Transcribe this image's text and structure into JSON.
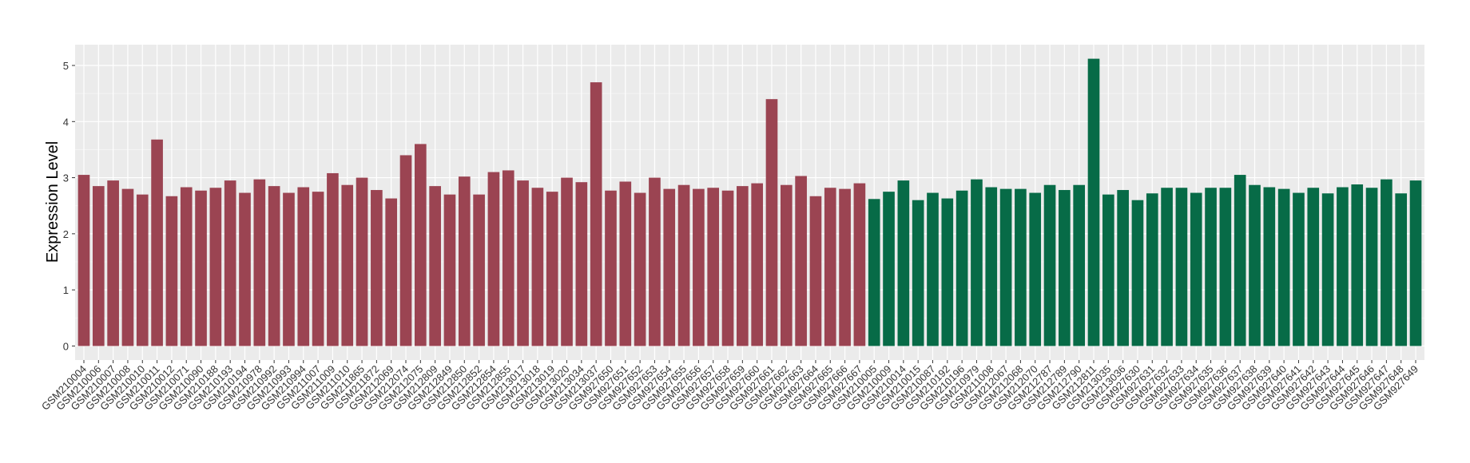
{
  "chart_data": {
    "type": "bar",
    "y_label": "Expression Level",
    "ylim": [
      -0.25,
      5.37
    ],
    "yticks": [
      0,
      1,
      2,
      3,
      4,
      5
    ],
    "grid": true,
    "series": [
      {
        "color": "#9b4452",
        "categories": [
          "GSM210004",
          "GSM210006",
          "GSM210007",
          "GSM210008",
          "GSM210010",
          "GSM210011",
          "GSM210012",
          "GSM210071",
          "GSM210090",
          "GSM210188",
          "GSM210193",
          "GSM210194",
          "GSM210978",
          "GSM210992",
          "GSM210993",
          "GSM210994",
          "GSM211007",
          "GSM211009",
          "GSM211010",
          "GSM211865",
          "GSM211872",
          "GSM212069",
          "GSM212074",
          "GSM212075",
          "GSM212809",
          "GSM212849",
          "GSM212850",
          "GSM212852",
          "GSM212854",
          "GSM212855",
          "GSM213017",
          "GSM213018",
          "GSM213019",
          "GSM213020",
          "GSM213034",
          "GSM213037",
          "GSM927650",
          "GSM927651",
          "GSM927652",
          "GSM927653",
          "GSM927654",
          "GSM927655",
          "GSM927656",
          "GSM927657",
          "GSM927658",
          "GSM927659",
          "GSM927660",
          "GSM927661",
          "GSM927662",
          "GSM927663",
          "GSM927664",
          "GSM927665",
          "GSM927666",
          "GSM927667"
        ],
        "values": [
          3.05,
          2.85,
          2.95,
          2.8,
          2.7,
          3.68,
          2.67,
          2.83,
          2.77,
          2.82,
          2.95,
          2.73,
          2.97,
          2.85,
          2.73,
          2.83,
          2.75,
          3.08,
          2.87,
          3.0,
          2.78,
          2.63,
          3.4,
          3.6,
          2.85,
          2.7,
          3.02,
          2.7,
          3.1,
          3.13,
          2.95,
          2.82,
          2.75,
          3.0,
          2.92,
          4.7,
          2.77,
          2.93,
          2.73,
          3.0,
          2.8,
          2.87,
          2.8,
          2.82,
          2.77,
          2.85,
          2.9,
          4.4,
          2.87,
          3.03,
          2.67,
          2.82,
          2.8,
          2.9
        ]
      },
      {
        "color": "#076b47",
        "categories": [
          "GSM210005",
          "GSM210009",
          "GSM210014",
          "GSM210015",
          "GSM210087",
          "GSM210192",
          "GSM210196",
          "GSM210979",
          "GSM211008",
          "GSM212067",
          "GSM212068",
          "GSM212070",
          "GSM212787",
          "GSM212789",
          "GSM212790",
          "GSM212811",
          "GSM213035",
          "GSM213036",
          "GSM927630",
          "GSM927631",
          "GSM927632",
          "GSM927633",
          "GSM927634",
          "GSM927635",
          "GSM927636",
          "GSM927637",
          "GSM927638",
          "GSM927639",
          "GSM927640",
          "GSM927641",
          "GSM927642",
          "GSM927643",
          "GSM927644",
          "GSM927645",
          "GSM927646",
          "GSM927647",
          "GSM927648",
          "GSM927649"
        ],
        "values": [
          2.62,
          2.75,
          2.95,
          2.6,
          2.73,
          2.63,
          2.77,
          2.97,
          2.83,
          2.8,
          2.8,
          2.73,
          2.87,
          2.78,
          2.87,
          5.12,
          2.7,
          2.78,
          2.6,
          2.72,
          2.82,
          2.82,
          2.73,
          2.82,
          2.82,
          3.05,
          2.87,
          2.83,
          2.8,
          2.73,
          2.82,
          2.72,
          2.83,
          2.88,
          2.82,
          2.97,
          2.72,
          2.95
        ]
      }
    ]
  }
}
